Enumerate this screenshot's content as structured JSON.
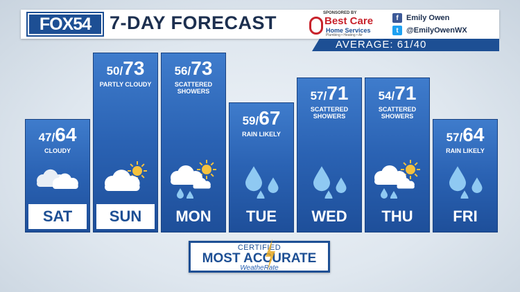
{
  "header": {
    "logo": "FOX54",
    "title": "7-DAY FORECAST",
    "sponsor": {
      "small": "SPONSORED BY",
      "name": "Best Care",
      "sub": "Home Services",
      "tiny": "Plumbing • Heating • Air"
    },
    "social": {
      "facebook": "Emily Owen",
      "twitter": "@EmilyOwenWX"
    }
  },
  "average": "AVERAGE:  61/40",
  "days": [
    {
      "label": "SAT",
      "low": "47",
      "high": "64",
      "condition": "CLOUDY",
      "icon": "cloudy-icon",
      "label_style": "white"
    },
    {
      "label": "SUN",
      "low": "50",
      "high": "73",
      "condition": "PARTLY CLOUDY",
      "icon": "partly-cloudy-icon",
      "label_style": "white"
    },
    {
      "label": "MON",
      "low": "56",
      "high": "73",
      "condition": "SCATTERED SHOWERS",
      "icon": "scattered-showers-icon",
      "label_style": "blue"
    },
    {
      "label": "TUE",
      "low": "59",
      "high": "67",
      "condition": "RAIN LIKELY",
      "icon": "rain-icon",
      "label_style": "blue"
    },
    {
      "label": "WED",
      "low": "57",
      "high": "71",
      "condition": "SCATTERED SHOWERS",
      "icon": "rain-icon",
      "label_style": "blue"
    },
    {
      "label": "THU",
      "low": "54",
      "high": "71",
      "condition": "SCATTERED SHOWERS",
      "icon": "scattered-showers-icon",
      "label_style": "blue"
    },
    {
      "label": "FRI",
      "low": "57",
      "high": "64",
      "condition": "RAIN LIKELY",
      "icon": "rain-icon",
      "label_style": "blue"
    }
  ],
  "badge": {
    "certified": "CERTIFIED",
    "main": "MOST ACCURATE",
    "sub": "WeatheRate"
  },
  "colors": {
    "brand_blue": "#1d4f94",
    "column_blue": "#2a62b3",
    "sponsor_red": "#c8232c"
  }
}
